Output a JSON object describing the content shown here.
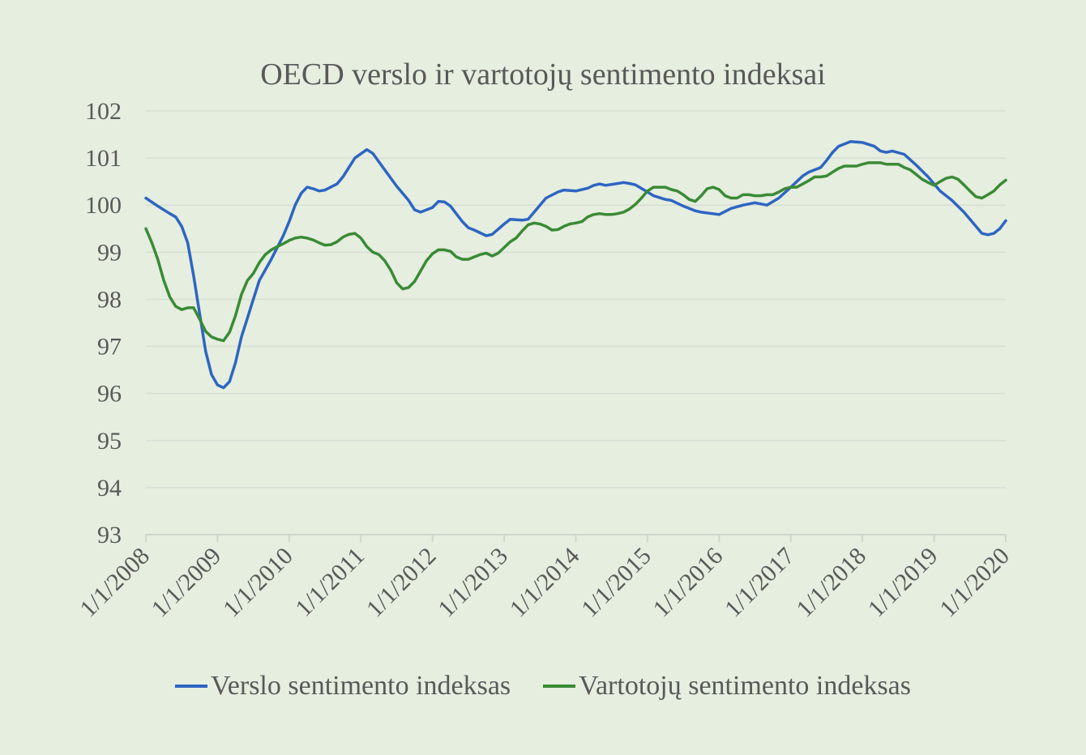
{
  "chart_data": {
    "type": "line",
    "title": "OECD verslo ir vartotojų sentimento indeksai",
    "xlabel": "",
    "ylabel": "",
    "ylim": [
      93,
      102
    ],
    "yticks": [
      93,
      94,
      95,
      96,
      97,
      98,
      99,
      100,
      101,
      102
    ],
    "xlim": [
      "2008-01",
      "2020-01"
    ],
    "xticks": [
      "1/1/2008",
      "1/1/2009",
      "1/1/2010",
      "1/1/2011",
      "1/1/2012",
      "1/1/2013",
      "1/1/2014",
      "1/1/2015",
      "1/1/2016",
      "1/1/2017",
      "1/1/2018",
      "1/1/2019",
      "1/1/2020"
    ],
    "grid": true,
    "legend_position": "bottom",
    "series": [
      {
        "name": "Verslo sentimento indeksas",
        "color": "#2e65c2",
        "points": [
          [
            "2008-01",
            100.15
          ],
          [
            "2008-03",
            99.98
          ],
          [
            "2008-05",
            99.82
          ],
          [
            "2008-06",
            99.75
          ],
          [
            "2008-07",
            99.55
          ],
          [
            "2008-08",
            99.2
          ],
          [
            "2008-09",
            98.5
          ],
          [
            "2008-10",
            97.7
          ],
          [
            "2008-11",
            96.9
          ],
          [
            "2008-12",
            96.4
          ],
          [
            "2009-01",
            96.18
          ],
          [
            "2009-02",
            96.12
          ],
          [
            "2009-03",
            96.25
          ],
          [
            "2009-04",
            96.65
          ],
          [
            "2009-05",
            97.2
          ],
          [
            "2009-06",
            97.6
          ],
          [
            "2009-07",
            98.0
          ],
          [
            "2009-08",
            98.4
          ],
          [
            "2009-10",
            98.85
          ],
          [
            "2009-12",
            99.35
          ],
          [
            "2010-01",
            99.65
          ],
          [
            "2010-02",
            100.0
          ],
          [
            "2010-03",
            100.25
          ],
          [
            "2010-04",
            100.38
          ],
          [
            "2010-05",
            100.35
          ],
          [
            "2010-06",
            100.3
          ],
          [
            "2010-07",
            100.32
          ],
          [
            "2010-09",
            100.45
          ],
          [
            "2010-10",
            100.6
          ],
          [
            "2010-12",
            101.0
          ],
          [
            "2011-02",
            101.18
          ],
          [
            "2011-03",
            101.1
          ],
          [
            "2011-05",
            100.75
          ],
          [
            "2011-07",
            100.4
          ],
          [
            "2011-09",
            100.1
          ],
          [
            "2011-10",
            99.9
          ],
          [
            "2011-11",
            99.85
          ],
          [
            "2012-01",
            99.95
          ],
          [
            "2012-02",
            100.08
          ],
          [
            "2012-03",
            100.07
          ],
          [
            "2012-04",
            99.98
          ],
          [
            "2012-06",
            99.65
          ],
          [
            "2012-07",
            99.52
          ],
          [
            "2012-08",
            99.47
          ],
          [
            "2012-10",
            99.35
          ],
          [
            "2012-11",
            99.38
          ],
          [
            "2013-01",
            99.6
          ],
          [
            "2013-02",
            99.7
          ],
          [
            "2013-04",
            99.68
          ],
          [
            "2013-05",
            99.7
          ],
          [
            "2013-07",
            100.0
          ],
          [
            "2013-08",
            100.15
          ],
          [
            "2013-10",
            100.28
          ],
          [
            "2013-11",
            100.32
          ],
          [
            "2014-01",
            100.3
          ],
          [
            "2014-03",
            100.36
          ],
          [
            "2014-04",
            100.42
          ],
          [
            "2014-05",
            100.45
          ],
          [
            "2014-06",
            100.42
          ],
          [
            "2014-08",
            100.46
          ],
          [
            "2014-09",
            100.48
          ],
          [
            "2014-10",
            100.46
          ],
          [
            "2014-11",
            100.43
          ],
          [
            "2015-01",
            100.28
          ],
          [
            "2015-02",
            100.2
          ],
          [
            "2015-04",
            100.12
          ],
          [
            "2015-05",
            100.1
          ],
          [
            "2015-07",
            99.98
          ],
          [
            "2015-09",
            99.88
          ],
          [
            "2015-10",
            99.85
          ],
          [
            "2016-01",
            99.8
          ],
          [
            "2016-03",
            99.93
          ],
          [
            "2016-05",
            100.0
          ],
          [
            "2016-07",
            100.05
          ],
          [
            "2016-09",
            100.0
          ],
          [
            "2016-11",
            100.15
          ],
          [
            "2017-01",
            100.38
          ],
          [
            "2017-03",
            100.62
          ],
          [
            "2017-04",
            100.7
          ],
          [
            "2017-06",
            100.8
          ],
          [
            "2017-07",
            100.95
          ],
          [
            "2017-08",
            101.12
          ],
          [
            "2017-09",
            101.25
          ],
          [
            "2017-11",
            101.35
          ],
          [
            "2018-01",
            101.33
          ],
          [
            "2018-03",
            101.25
          ],
          [
            "2018-04",
            101.15
          ],
          [
            "2018-05",
            101.12
          ],
          [
            "2018-06",
            101.15
          ],
          [
            "2018-08",
            101.08
          ],
          [
            "2018-10",
            100.85
          ],
          [
            "2018-12",
            100.6
          ],
          [
            "2019-02",
            100.3
          ],
          [
            "2019-04",
            100.1
          ],
          [
            "2019-06",
            99.85
          ],
          [
            "2019-08",
            99.55
          ],
          [
            "2019-09",
            99.4
          ],
          [
            "2019-10",
            99.37
          ],
          [
            "2019-11",
            99.4
          ],
          [
            "2019-12",
            99.5
          ],
          [
            "2020-01",
            99.67
          ]
        ]
      },
      {
        "name": "Vartotojų sentimento indeksas",
        "color": "#3a8a35",
        "points": [
          [
            "2008-01",
            99.5
          ],
          [
            "2008-02",
            99.2
          ],
          [
            "2008-03",
            98.85
          ],
          [
            "2008-04",
            98.4
          ],
          [
            "2008-05",
            98.05
          ],
          [
            "2008-06",
            97.85
          ],
          [
            "2008-07",
            97.78
          ],
          [
            "2008-08",
            97.82
          ],
          [
            "2008-09",
            97.82
          ],
          [
            "2008-10",
            97.58
          ],
          [
            "2008-11",
            97.32
          ],
          [
            "2008-12",
            97.2
          ],
          [
            "2009-01",
            97.15
          ],
          [
            "2009-02",
            97.12
          ],
          [
            "2009-03",
            97.3
          ],
          [
            "2009-04",
            97.65
          ],
          [
            "2009-05",
            98.1
          ],
          [
            "2009-06",
            98.4
          ],
          [
            "2009-07",
            98.55
          ],
          [
            "2009-08",
            98.78
          ],
          [
            "2009-09",
            98.95
          ],
          [
            "2009-10",
            99.05
          ],
          [
            "2009-11",
            99.12
          ],
          [
            "2009-12",
            99.18
          ],
          [
            "2010-01",
            99.25
          ],
          [
            "2010-02",
            99.3
          ],
          [
            "2010-03",
            99.32
          ],
          [
            "2010-04",
            99.3
          ],
          [
            "2010-05",
            99.26
          ],
          [
            "2010-06",
            99.2
          ],
          [
            "2010-07",
            99.15
          ],
          [
            "2010-08",
            99.16
          ],
          [
            "2010-09",
            99.22
          ],
          [
            "2010-10",
            99.32
          ],
          [
            "2010-11",
            99.38
          ],
          [
            "2010-12",
            99.4
          ],
          [
            "2011-01",
            99.3
          ],
          [
            "2011-02",
            99.12
          ],
          [
            "2011-03",
            99.0
          ],
          [
            "2011-04",
            98.95
          ],
          [
            "2011-05",
            98.82
          ],
          [
            "2011-06",
            98.62
          ],
          [
            "2011-07",
            98.35
          ],
          [
            "2011-08",
            98.22
          ],
          [
            "2011-09",
            98.25
          ],
          [
            "2011-10",
            98.38
          ],
          [
            "2011-11",
            98.6
          ],
          [
            "2011-12",
            98.82
          ],
          [
            "2012-01",
            98.97
          ],
          [
            "2012-02",
            99.05
          ],
          [
            "2012-03",
            99.05
          ],
          [
            "2012-04",
            99.02
          ],
          [
            "2012-05",
            98.9
          ],
          [
            "2012-06",
            98.85
          ],
          [
            "2012-07",
            98.85
          ],
          [
            "2012-08",
            98.9
          ],
          [
            "2012-09",
            98.95
          ],
          [
            "2012-10",
            98.98
          ],
          [
            "2012-11",
            98.92
          ],
          [
            "2012-12",
            98.98
          ],
          [
            "2013-01",
            99.1
          ],
          [
            "2013-02",
            99.22
          ],
          [
            "2013-03",
            99.3
          ],
          [
            "2013-04",
            99.45
          ],
          [
            "2013-05",
            99.58
          ],
          [
            "2013-06",
            99.62
          ],
          [
            "2013-07",
            99.6
          ],
          [
            "2013-08",
            99.55
          ],
          [
            "2013-09",
            99.47
          ],
          [
            "2013-10",
            99.48
          ],
          [
            "2013-11",
            99.55
          ],
          [
            "2013-12",
            99.6
          ],
          [
            "2014-01",
            99.62
          ],
          [
            "2014-02",
            99.65
          ],
          [
            "2014-03",
            99.75
          ],
          [
            "2014-04",
            99.8
          ],
          [
            "2014-05",
            99.82
          ],
          [
            "2014-06",
            99.8
          ],
          [
            "2014-07",
            99.8
          ],
          [
            "2014-08",
            99.82
          ],
          [
            "2014-09",
            99.85
          ],
          [
            "2014-10",
            99.92
          ],
          [
            "2014-11",
            100.02
          ],
          [
            "2014-12",
            100.15
          ],
          [
            "2015-01",
            100.3
          ],
          [
            "2015-02",
            100.38
          ],
          [
            "2015-03",
            100.38
          ],
          [
            "2015-04",
            100.38
          ],
          [
            "2015-05",
            100.33
          ],
          [
            "2015-06",
            100.3
          ],
          [
            "2015-07",
            100.22
          ],
          [
            "2015-08",
            100.12
          ],
          [
            "2015-09",
            100.08
          ],
          [
            "2015-10",
            100.2
          ],
          [
            "2015-11",
            100.35
          ],
          [
            "2015-12",
            100.38
          ],
          [
            "2016-01",
            100.33
          ],
          [
            "2016-02",
            100.2
          ],
          [
            "2016-03",
            100.15
          ],
          [
            "2016-04",
            100.15
          ],
          [
            "2016-05",
            100.22
          ],
          [
            "2016-06",
            100.22
          ],
          [
            "2016-07",
            100.2
          ],
          [
            "2016-08",
            100.2
          ],
          [
            "2016-09",
            100.22
          ],
          [
            "2016-10",
            100.22
          ],
          [
            "2016-11",
            100.28
          ],
          [
            "2016-12",
            100.35
          ],
          [
            "2017-01",
            100.38
          ],
          [
            "2017-02",
            100.38
          ],
          [
            "2017-03",
            100.45
          ],
          [
            "2017-04",
            100.52
          ],
          [
            "2017-05",
            100.6
          ],
          [
            "2017-06",
            100.6
          ],
          [
            "2017-07",
            100.62
          ],
          [
            "2017-08",
            100.7
          ],
          [
            "2017-09",
            100.78
          ],
          [
            "2017-10",
            100.83
          ],
          [
            "2017-11",
            100.83
          ],
          [
            "2017-12",
            100.83
          ],
          [
            "2018-01",
            100.87
          ],
          [
            "2018-02",
            100.9
          ],
          [
            "2018-03",
            100.9
          ],
          [
            "2018-04",
            100.9
          ],
          [
            "2018-05",
            100.87
          ],
          [
            "2018-06",
            100.87
          ],
          [
            "2018-07",
            100.87
          ],
          [
            "2018-08",
            100.8
          ],
          [
            "2018-09",
            100.75
          ],
          [
            "2018-10",
            100.65
          ],
          [
            "2018-11",
            100.55
          ],
          [
            "2018-12",
            100.48
          ],
          [
            "2019-01",
            100.42
          ],
          [
            "2019-02",
            100.5
          ],
          [
            "2019-03",
            100.57
          ],
          [
            "2019-04",
            100.6
          ],
          [
            "2019-05",
            100.55
          ],
          [
            "2019-06",
            100.43
          ],
          [
            "2019-07",
            100.3
          ],
          [
            "2019-08",
            100.18
          ],
          [
            "2019-09",
            100.15
          ],
          [
            "2019-10",
            100.22
          ],
          [
            "2019-11",
            100.3
          ],
          [
            "2019-12",
            100.43
          ],
          [
            "2020-01",
            100.53
          ]
        ]
      }
    ]
  }
}
